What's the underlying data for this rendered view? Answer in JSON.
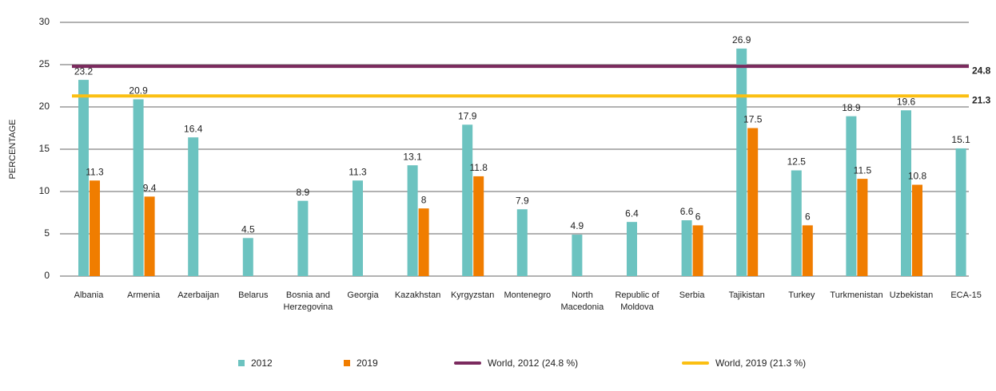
{
  "chart_data": {
    "type": "bar",
    "y_label": "PERCENTAGE",
    "categories": [
      "Albania",
      "Armenia",
      "Azerbaijan",
      "Belarus",
      "Bosnia and Herzegovina",
      "Georgia",
      "Kazakhstan",
      "Kyrgyzstan",
      "Montenegro",
      "North Macedonia",
      "Republic of Moldova",
      "Serbia",
      "Tajikistan",
      "Turkey",
      "Turkmenistan",
      "Uzbekistan",
      "ECA-15"
    ],
    "series": [
      {
        "name": "2012",
        "color": "#6cc3c0",
        "values": [
          23.2,
          20.9,
          16.4,
          4.5,
          8.9,
          11.3,
          13.1,
          17.9,
          7.9,
          4.9,
          6.4,
          6.6,
          26.9,
          12.5,
          18.9,
          19.6,
          15.1
        ]
      },
      {
        "name": "2019",
        "color": "#f07d00",
        "values": [
          11.3,
          9.4,
          null,
          null,
          null,
          null,
          8,
          11.8,
          null,
          null,
          null,
          6,
          17.5,
          6,
          11.5,
          10.8,
          null
        ]
      }
    ],
    "reference_lines": [
      {
        "name": "World, 2012 (24.8 %)",
        "color": "#7b2a5e",
        "value": 24.8
      },
      {
        "name": "World, 2019 (21.3 %)",
        "color": "#fbbf12",
        "value": 21.3
      }
    ],
    "ylim": [
      0,
      30
    ],
    "yticks": [
      0,
      5,
      10,
      15,
      20,
      25,
      30
    ],
    "grid": true
  }
}
